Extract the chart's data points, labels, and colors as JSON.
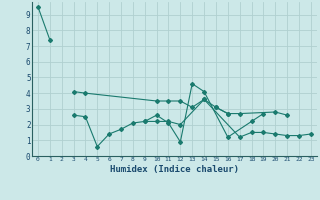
{
  "xlabel": "Humidex (Indice chaleur)",
  "xlim": [
    -0.5,
    23.5
  ],
  "ylim": [
    0,
    9.8
  ],
  "yticks": [
    0,
    1,
    2,
    3,
    4,
    5,
    6,
    7,
    8,
    9
  ],
  "xticks": [
    0,
    1,
    2,
    3,
    4,
    5,
    6,
    7,
    8,
    9,
    10,
    11,
    12,
    13,
    14,
    15,
    16,
    17,
    18,
    19,
    20,
    21,
    22,
    23
  ],
  "line_color": "#1a7a6e",
  "bg_color": "#cce8e8",
  "grid_major_color": "#b0d0d0",
  "grid_minor_color": "#c8e0e0",
  "axis_color": "#2a6060",
  "label_color": "#1a4a6e",
  "series": [
    [
      0,
      9.5,
      1,
      7.4
    ],
    [
      3,
      4.1,
      4,
      4.0,
      10,
      3.5,
      11,
      3.5,
      12,
      3.5,
      13,
      3.1,
      14,
      3.6,
      15,
      3.1,
      16,
      2.7,
      17,
      2.7,
      20,
      2.8,
      21,
      2.6
    ],
    [
      3,
      2.6,
      4,
      2.5,
      5,
      0.6,
      6,
      1.4,
      7,
      1.7,
      8,
      2.1,
      9,
      2.2,
      10,
      2.6,
      11,
      2.1,
      12,
      0.9,
      13,
      4.6,
      14,
      4.1,
      16,
      1.2,
      18,
      2.2,
      19,
      2.7
    ],
    [
      15,
      3.1,
      16,
      2.7
    ],
    [
      9,
      2.2,
      10,
      2.2,
      11,
      2.2,
      12,
      2.0,
      14,
      3.6,
      17,
      1.2,
      18,
      1.5,
      19,
      1.5,
      20,
      1.4,
      21,
      1.3,
      22,
      1.3,
      23,
      1.4
    ]
  ]
}
